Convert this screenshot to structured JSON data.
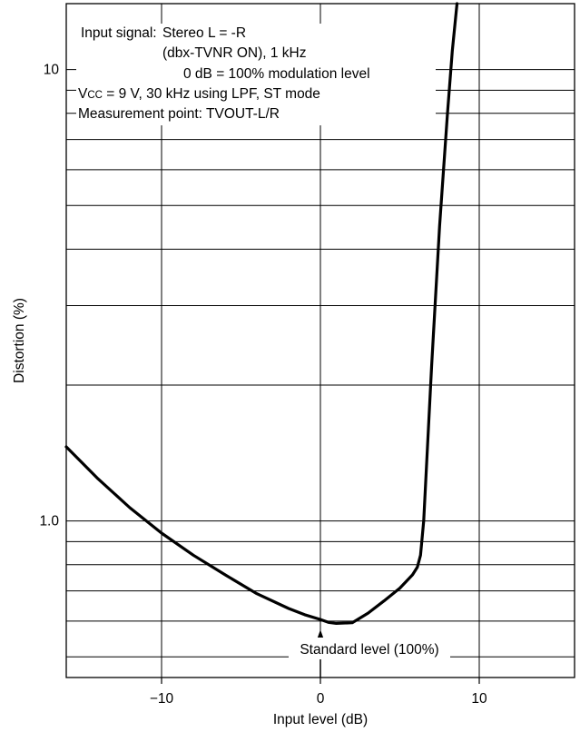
{
  "chart_data": {
    "type": "line",
    "x_scale": "linear",
    "y_scale": "log",
    "xlim": [
      -16,
      16
    ],
    "ylim": [
      0.45,
      14
    ],
    "xlabel": "Input level (dB)",
    "ylabel": "Distortion (%)",
    "x_ticks": [
      -10,
      0,
      10
    ],
    "x_tick_labels": [
      "−10",
      "0",
      "10"
    ],
    "y_ticks": [
      1.0,
      10
    ],
    "y_tick_labels": [
      "1.0",
      "10"
    ],
    "grid": true,
    "vertical_gridlines": [
      -10,
      0,
      10
    ],
    "horizontal_gridlines": [
      0.5,
      0.6,
      0.7,
      0.8,
      0.9,
      1.0,
      2,
      3,
      4,
      5,
      6,
      7,
      8,
      9,
      10
    ],
    "notes": {
      "input_label": "Input signal:",
      "input_line1": "Stereo L = -R",
      "input_line2": "(dbx-TVNR ON), 1 kHz",
      "input_line3": "0 dB = 100% modulation level",
      "vcc_line": "Vcc = 9 V, 30 kHz using LPF, ST mode",
      "vcc_prefix": "V",
      "vcc_sub": "CC",
      "vcc_rest": " = 9 V, 30 kHz using LPF, ST mode",
      "measure_line": "Measurement point: TVOUT-L/R"
    },
    "annotation": {
      "text": "Standard level (100%)",
      "x": 0,
      "y": 0.58
    },
    "series": [
      {
        "x": [
          -16,
          -14,
          -12,
          -10,
          -8,
          -6,
          -4,
          -2,
          -1,
          0,
          0.5,
          1,
          2,
          3,
          4,
          5,
          5.8,
          6.1,
          6.3,
          6.5,
          7,
          7.5,
          8,
          8.3,
          8.6
        ],
        "y": [
          1.46,
          1.24,
          1.07,
          0.94,
          0.84,
          0.76,
          0.69,
          0.64,
          0.62,
          0.605,
          0.596,
          0.593,
          0.595,
          0.625,
          0.665,
          0.71,
          0.76,
          0.79,
          0.84,
          1.0,
          2.2,
          4.5,
          8.0,
          11.0,
          14.0
        ]
      }
    ]
  }
}
